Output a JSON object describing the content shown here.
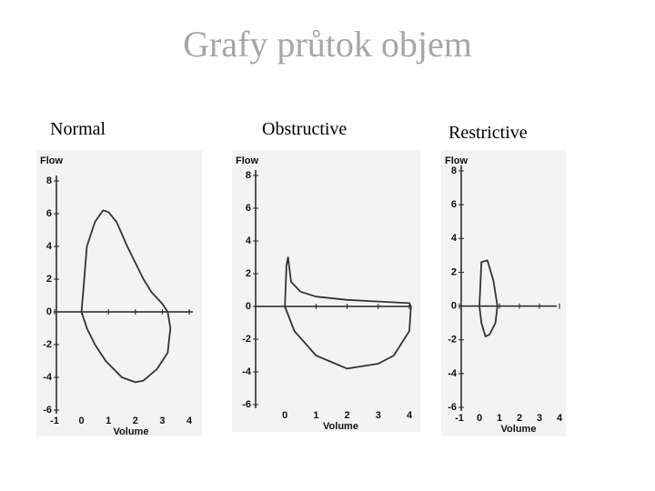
{
  "title": "Grafy průtok objem",
  "chart_data": [
    {
      "type": "line",
      "title": "Normal",
      "x_label": "Volume",
      "y_label": "Flow",
      "xlim": [
        -1,
        4
      ],
      "ylim": [
        -6,
        8
      ],
      "xticks": [
        -1,
        0,
        1,
        2,
        3,
        4
      ],
      "yticks": [
        8,
        6,
        4,
        2,
        0,
        -2,
        -4,
        -6
      ],
      "x": [
        0,
        0.1,
        0.2,
        0.5,
        0.8,
        1.0,
        1.3,
        1.7,
        2.0,
        2.3,
        2.6,
        3.0,
        3.2,
        3.3,
        3.2,
        2.8,
        2.3,
        2.0,
        1.5,
        0.9,
        0.5,
        0.2,
        0
      ],
      "series": [
        {
          "color": "#333333",
          "values": [
            0,
            2,
            4,
            5.5,
            6.2,
            6.1,
            5.5,
            4,
            3,
            2,
            1.2,
            0.5,
            0,
            -1,
            -2.5,
            -3.5,
            -4.2,
            -4.3,
            -4,
            -3,
            -2,
            -1,
            0
          ]
        }
      ]
    },
    {
      "type": "line",
      "title": "Obstructive",
      "x_label": "Volume",
      "y_label": "Flow",
      "xlim": [
        -1,
        4
      ],
      "ylim": [
        -6,
        8
      ],
      "xticks": [
        0,
        1,
        2,
        3,
        4
      ],
      "yticks": [
        8,
        6,
        4,
        2,
        0,
        -2,
        -4,
        -6
      ],
      "x": [
        0,
        0.05,
        0.1,
        0.2,
        0.5,
        1,
        2,
        3,
        4,
        4.05,
        4,
        3.5,
        3,
        2,
        1,
        0.3,
        0
      ],
      "series": [
        {
          "color": "#333333",
          "values": [
            0,
            2.5,
            3,
            1.5,
            0.9,
            0.6,
            0.4,
            0.3,
            0.2,
            0,
            -1.5,
            -3,
            -3.5,
            -3.8,
            -3,
            -1.5,
            0
          ]
        }
      ]
    },
    {
      "type": "line",
      "title": "Restrictive",
      "x_label": "Volume",
      "y_label": "Flow",
      "xlim": [
        -1,
        4
      ],
      "ylim": [
        -6,
        8
      ],
      "xticks": [
        -1,
        0,
        1,
        2,
        3,
        4
      ],
      "yticks": [
        8,
        6,
        4,
        2,
        0,
        -2,
        -4,
        -6
      ],
      "x": [
        0,
        0.1,
        0.4,
        0.7,
        0.9,
        0.8,
        0.5,
        0.3,
        0.1,
        0
      ],
      "series": [
        {
          "color": "#333333",
          "values": [
            0,
            2.6,
            2.7,
            1.5,
            0,
            -1,
            -1.7,
            -1.8,
            -1,
            0
          ]
        }
      ]
    }
  ]
}
